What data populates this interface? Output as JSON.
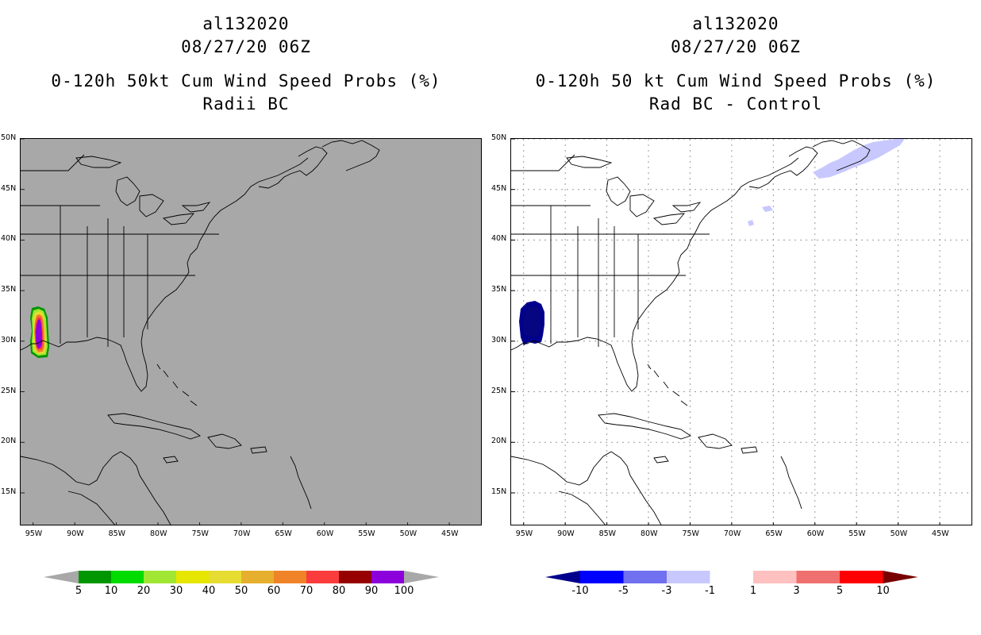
{
  "left_panel": {
    "storm": "al132020",
    "datetime": "08/27/20 06Z",
    "title": "0-120h 50kt Cum Wind Speed Probs (%)",
    "subtitle": "Radii BC",
    "background": "#a8a8a8",
    "colorbar": {
      "labels": [
        "5",
        "10",
        "20",
        "30",
        "40",
        "50",
        "60",
        "70",
        "80",
        "90",
        "100"
      ],
      "colors": [
        "#009600",
        "#00dc00",
        "#a0e632",
        "#e6e600",
        "#e6dc32",
        "#e6af2d",
        "#f08228",
        "#fa3c3c",
        "#960000",
        "#8c00dc"
      ],
      "under_color": "#a8a8a8",
      "over_color": "#a8a8a8"
    }
  },
  "right_panel": {
    "storm": "al132020",
    "datetime": "08/27/20 06Z",
    "title": "0-120h 50 kt Cum Wind Speed Probs (%)",
    "subtitle": "Rad BC - Control",
    "background": "#ffffff",
    "colorbar": {
      "labels": [
        "-10",
        "-5",
        "-3",
        "-1",
        "1",
        "3",
        "5",
        "10"
      ],
      "colors": [
        "#0000ff",
        "#7070f0",
        "#c8c8ff",
        "#ffffff",
        "#ffc0c0",
        "#f07070",
        "#ff0000"
      ],
      "under_color": "#00008c",
      "over_color": "#780000"
    }
  },
  "axes": {
    "lat_labels": [
      "50N",
      "45N",
      "40N",
      "35N",
      "30N",
      "25N",
      "20N",
      "15N"
    ],
    "lon_labels": [
      "95W",
      "90W",
      "85W",
      "80W",
      "75W",
      "70W",
      "65W",
      "60W",
      "55W",
      "50W",
      "45W"
    ],
    "lat_values": [
      50,
      45,
      40,
      35,
      30,
      25,
      20,
      15
    ],
    "lon_values": [
      -95,
      -90,
      -85,
      -80,
      -75,
      -70,
      -65,
      -60,
      -55,
      -50,
      -45
    ],
    "lon_range": [
      -96.5,
      -41
    ],
    "lat_range": [
      11.7,
      50
    ]
  },
  "icons": {
    "coastline": "coastline-outline",
    "probability_swath": "wind-probability-swath",
    "difference_swath": "wind-difference-swath"
  }
}
